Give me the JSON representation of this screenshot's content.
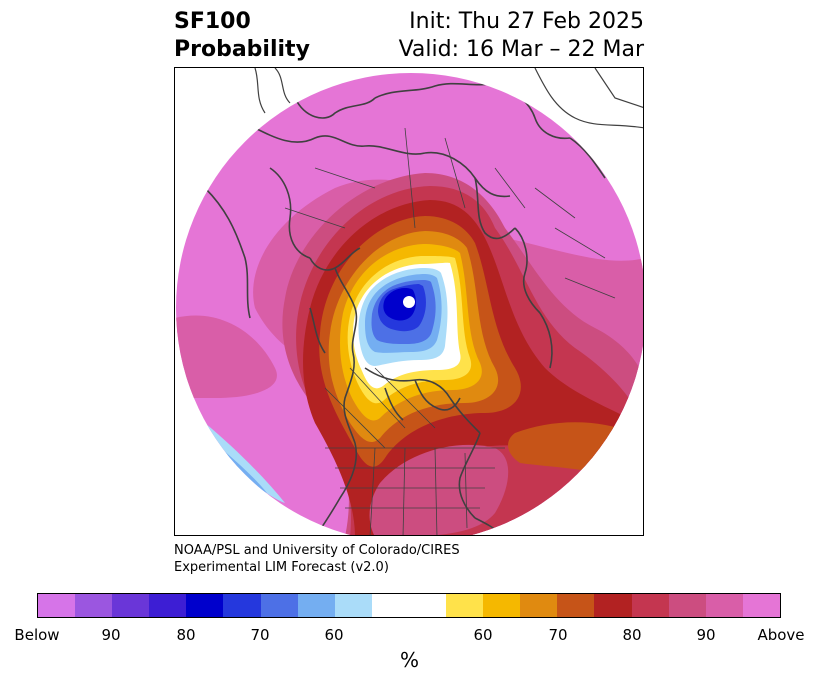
{
  "title": {
    "product": "SF100",
    "subtitle": "Probability",
    "init": "Init: Thu 27 Feb 2025",
    "valid": "Valid: 16 Mar – 22 Mar"
  },
  "credit": {
    "line1": "NOAA/PSL and University of Colorado/CIRES",
    "line2": "Experimental LIM Forecast (v2.0)"
  },
  "colorbar": {
    "colors": [
      "#d674e8",
      "#9b56e0",
      "#6a36d8",
      "#3d1ed4",
      "#0000cc",
      "#2538dd",
      "#4d70e6",
      "#74aef1",
      "#aadcf9",
      "#ffffff",
      "#ffffff",
      "#ffe24a",
      "#f5b800",
      "#e08a10",
      "#c65418",
      "#b22222",
      "#c43650",
      "#cc4d80",
      "#d95ea8",
      "#e575d6"
    ],
    "labels": [
      "Below",
      "90",
      "80",
      "70",
      "60",
      "60",
      "70",
      "80",
      "90",
      "Above"
    ],
    "unit": "%"
  },
  "map": {
    "projection": "north-polar-stereographic",
    "colors": {
      "far_above": "#e575d6",
      "above_90": "#d95ea8",
      "above_85": "#cc4d80",
      "above_80": "#c43650",
      "above_75": "#b22222",
      "above_70": "#c65418",
      "above_65": "#e08a10",
      "above_60": "#f5b800",
      "above_55": "#ffe24a",
      "below_55": "#aadcf9",
      "below_60": "#74aef1",
      "below_65": "#4d70e6",
      "below_70": "#2538dd",
      "below_75": "#0000cc",
      "coastline": "#404040"
    }
  }
}
